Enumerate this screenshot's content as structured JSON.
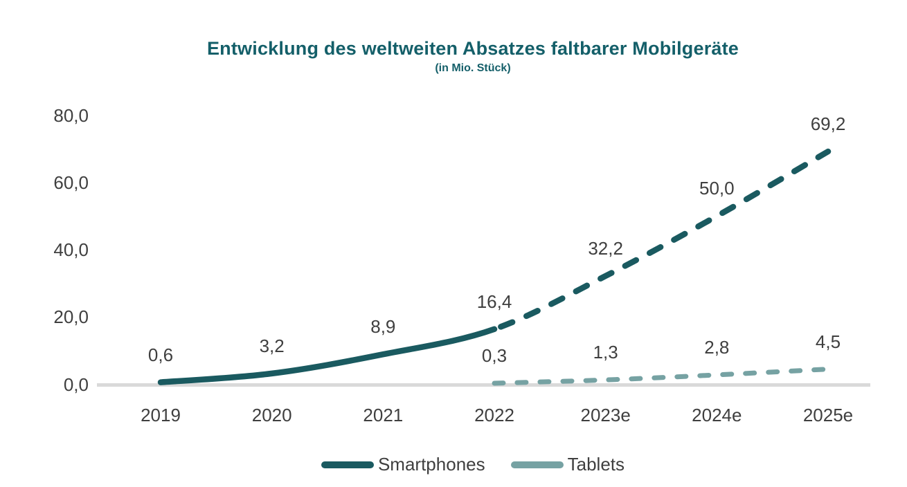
{
  "chart_data": {
    "type": "line",
    "title": "Entwicklung des weltweiten Absatzes faltbarer Mobilgeräte",
    "subtitle": "(in Mio. Stück)",
    "categories": [
      "2019",
      "2020",
      "2021",
      "2022",
      "2023e",
      "2024e",
      "2025e"
    ],
    "series": [
      {
        "name": "Smartphones",
        "values": [
          0.6,
          3.2,
          8.9,
          16.4,
          32.2,
          50.0,
          69.2
        ],
        "value_labels": [
          "0,6",
          "3,2",
          "8,9",
          "16,4",
          "32,2",
          "50,0",
          "69,2"
        ],
        "color": "#1a5a60",
        "solid_until_category_index": 3
      },
      {
        "name": "Tablets",
        "values": [
          null,
          null,
          null,
          0.3,
          1.3,
          2.8,
          4.5
        ],
        "value_labels": [
          null,
          null,
          null,
          "0,3",
          "1,3",
          "2,8",
          "4,5"
        ],
        "color": "#76a2a3",
        "solid_until_category_index": 3
      }
    ],
    "y_axis": {
      "tick_labels": [
        "0,0",
        "20,0",
        "40,0",
        "60,0",
        "80,0"
      ],
      "tick_values": [
        0,
        20,
        40,
        60,
        80
      ],
      "min": 0,
      "max": 80
    },
    "ylim": [
      0,
      80
    ],
    "grid": false,
    "legend_position": "bottom",
    "colors": {
      "title": "#145f69",
      "axis_line": "#d9d9d9",
      "label_text": "#3f3f3f"
    }
  }
}
